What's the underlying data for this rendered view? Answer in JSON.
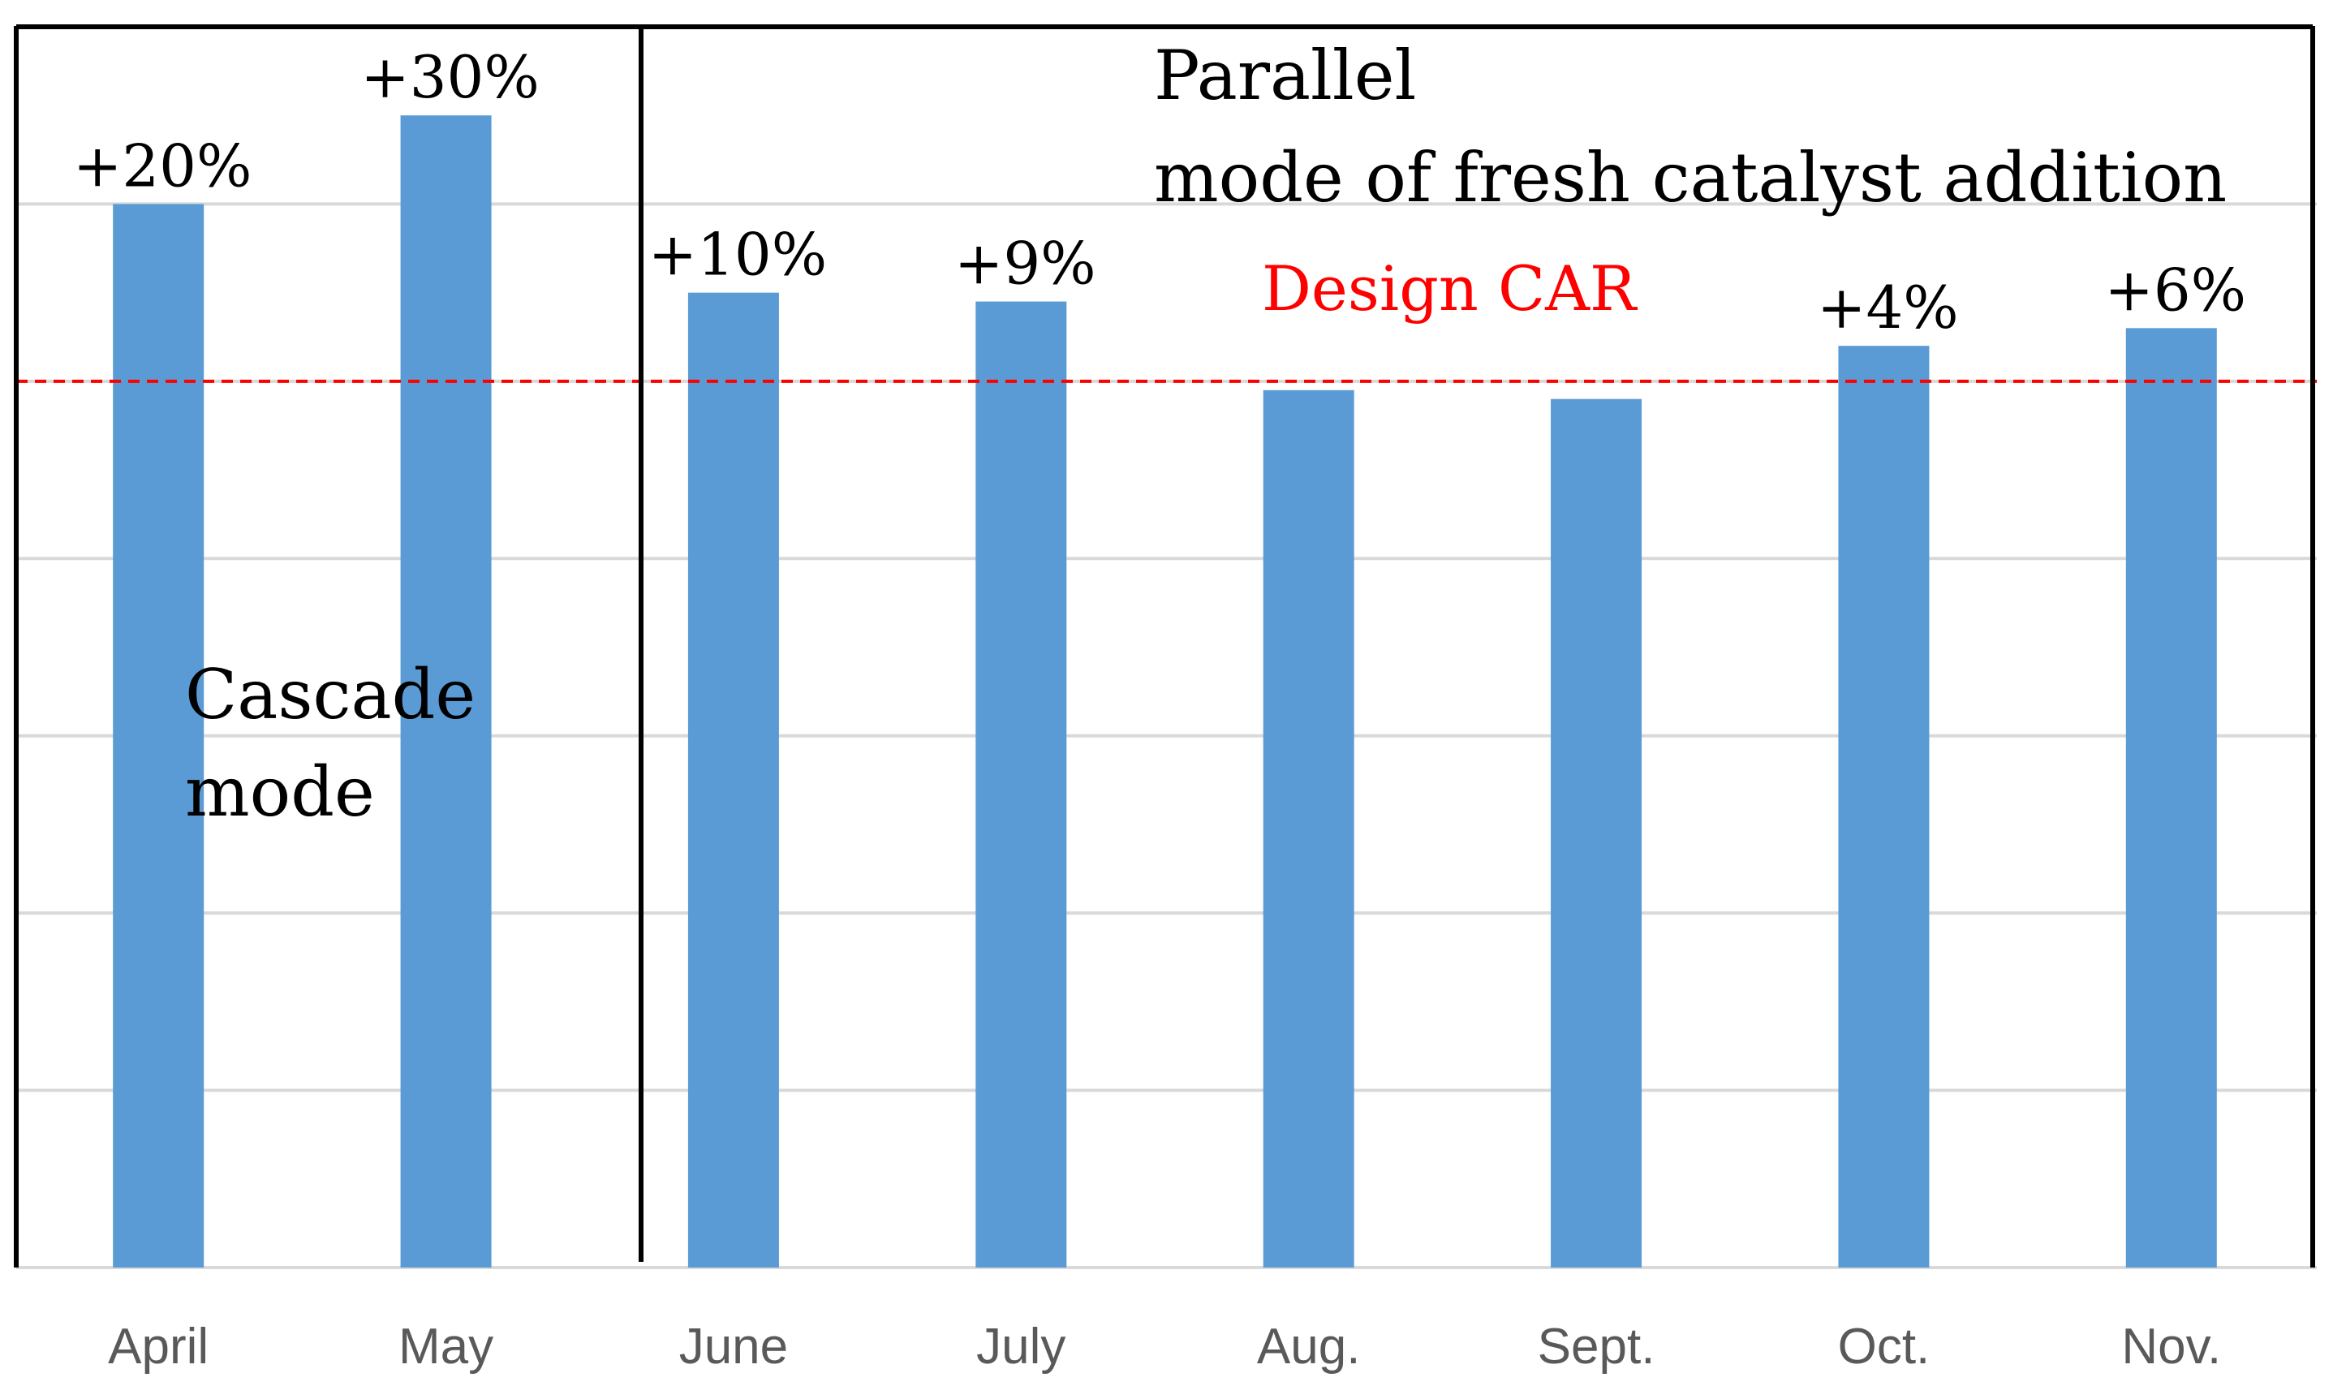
{
  "chart_data": {
    "type": "bar",
    "categories": [
      "April",
      "May",
      "June",
      "July",
      "Aug.",
      "Sept.",
      "Oct.",
      "Nov."
    ],
    "values": [
      120,
      130,
      110,
      109,
      99,
      98,
      104,
      106
    ],
    "value_labels": [
      "+20%",
      "+30%",
      "+10%",
      "+9%",
      "",
      "",
      "+4%",
      "+6%"
    ],
    "ylim": [
      0,
      140
    ],
    "gridlines": [
      0,
      20,
      40,
      60,
      80,
      100,
      120,
      140
    ],
    "reference_line": {
      "value": 100,
      "label": "Design CAR",
      "color": "#ff0000"
    },
    "regions": [
      {
        "label_lines": [
          "Cascade",
          "mode"
        ],
        "categories": [
          "April",
          "May"
        ]
      },
      {
        "label_lines": [
          "Parallel",
          "mode of fresh catalyst addition"
        ],
        "categories": [
          "June",
          "July",
          "Aug.",
          "Sept.",
          "Oct.",
          "Nov."
        ]
      }
    ],
    "colors": {
      "bar": "#5b9bd5",
      "grid": "#d9d9d9",
      "axis_text": "#595959",
      "frame": "#000000",
      "text": "#000000"
    }
  }
}
